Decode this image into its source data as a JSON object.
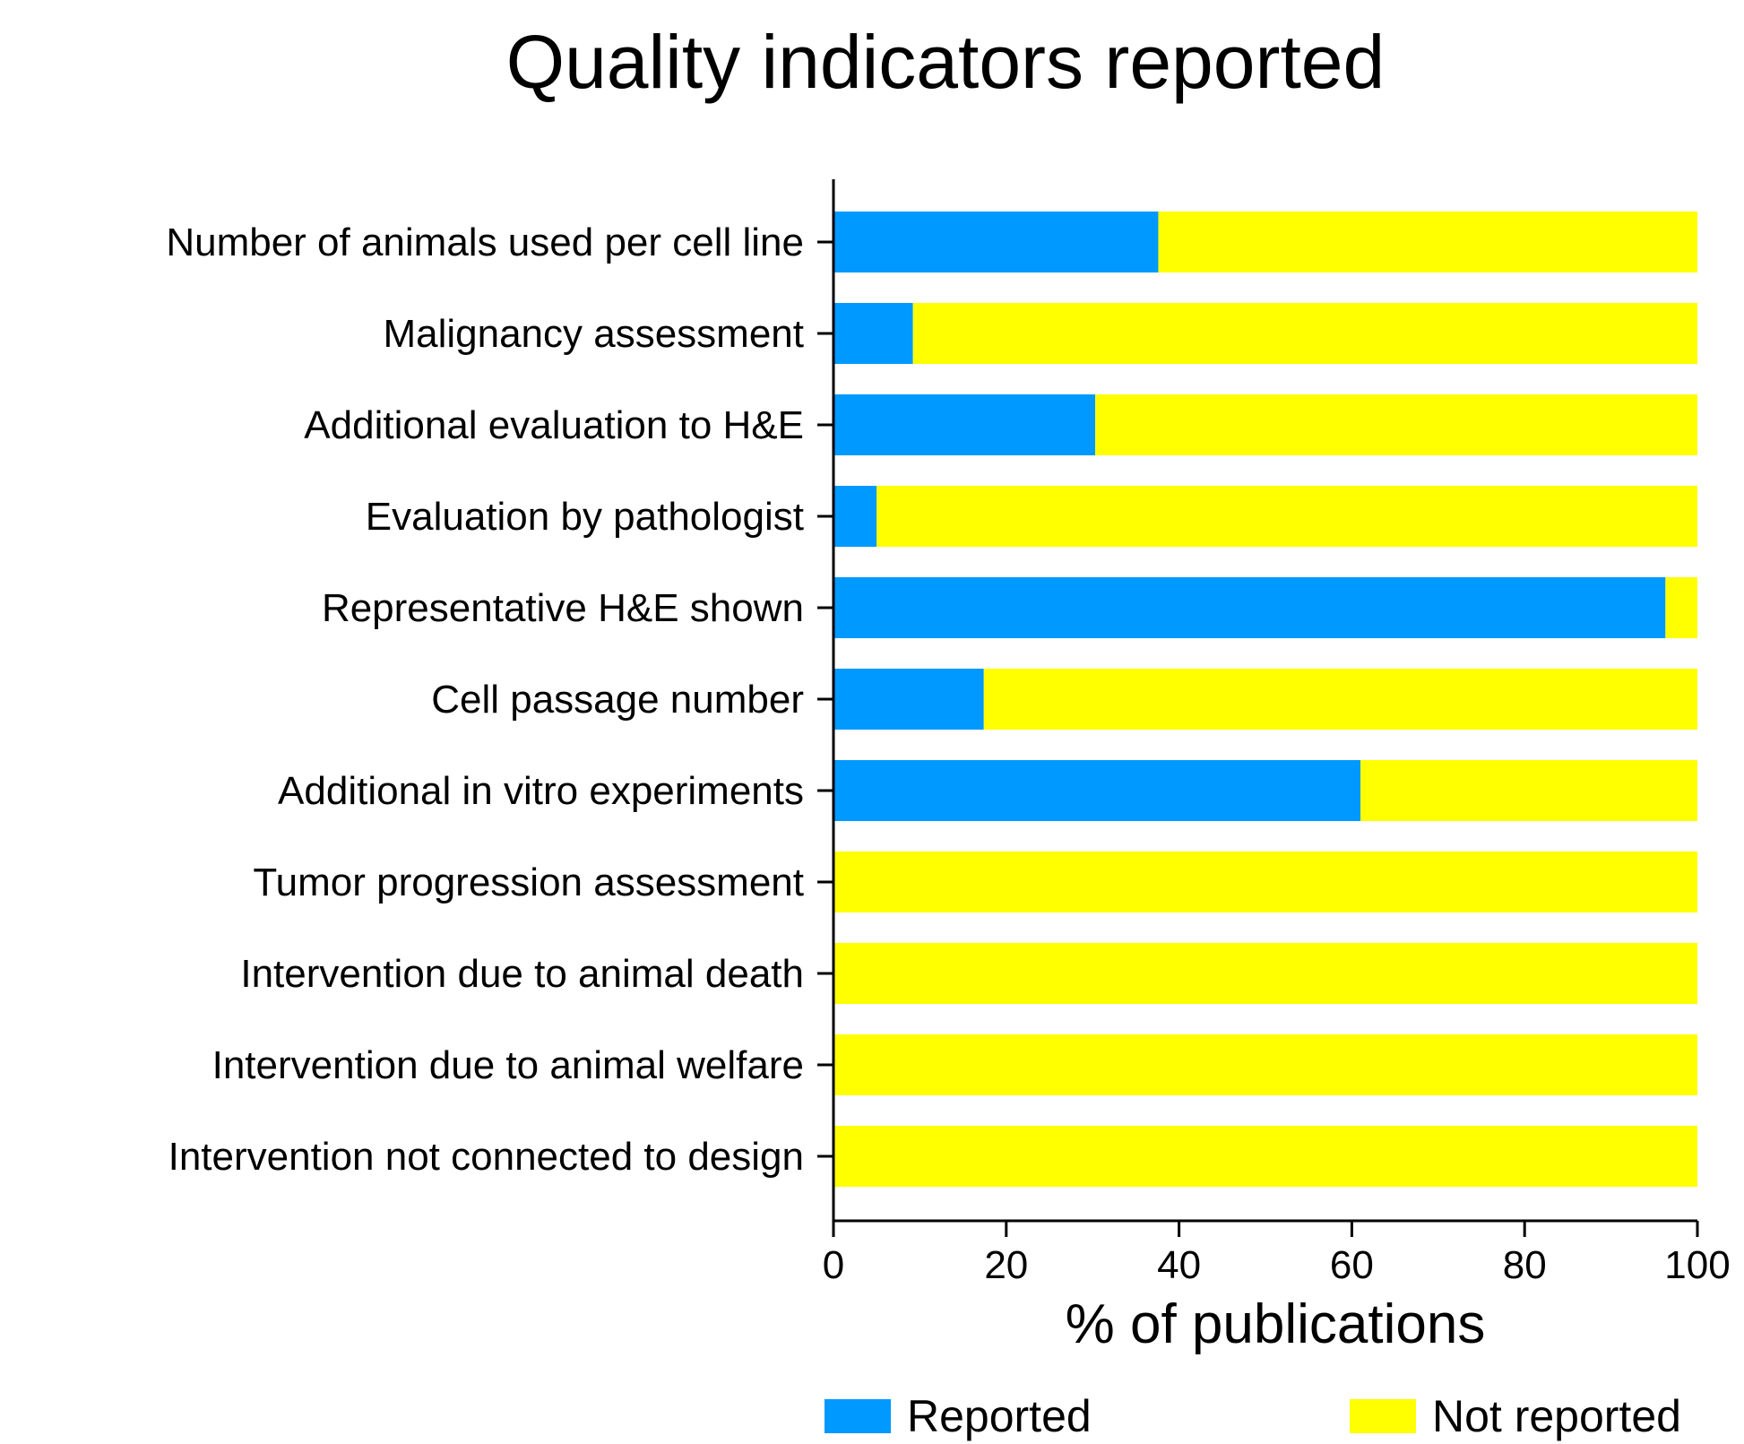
{
  "chart_data": {
    "type": "bar",
    "orientation": "horizontal",
    "stacked": true,
    "title": "Quality indicators reported",
    "xlabel": "% of publications",
    "ylabel": "",
    "xlim": [
      0,
      100
    ],
    "xticks": [
      "0",
      "20",
      "40",
      "60",
      "80",
      "100"
    ],
    "grid": false,
    "legend_position": "bottom",
    "categories": [
      "Number of animals used per cell line",
      "Malignancy assessment",
      "Additional evaluation to H&E",
      "Evaluation by pathologist",
      "Representative H&E shown",
      "Cell passage number",
      "Additional in vitro experiments",
      "Tumor progression assessment",
      "Intervention due to animal death",
      "Intervention due to animal welfare",
      "Intervention not connected to design"
    ],
    "series": [
      {
        "name": "Reported",
        "color": "#0099ff",
        "values": [
          37.6,
          9.2,
          30.3,
          5.0,
          96.3,
          17.4,
          61.0,
          0,
          0,
          0,
          0
        ]
      },
      {
        "name": "Not reported",
        "color": "#ffff00",
        "values": [
          62.4,
          90.8,
          69.7,
          95.0,
          3.7,
          82.6,
          39.0,
          100,
          100,
          100,
          100
        ]
      }
    ]
  }
}
